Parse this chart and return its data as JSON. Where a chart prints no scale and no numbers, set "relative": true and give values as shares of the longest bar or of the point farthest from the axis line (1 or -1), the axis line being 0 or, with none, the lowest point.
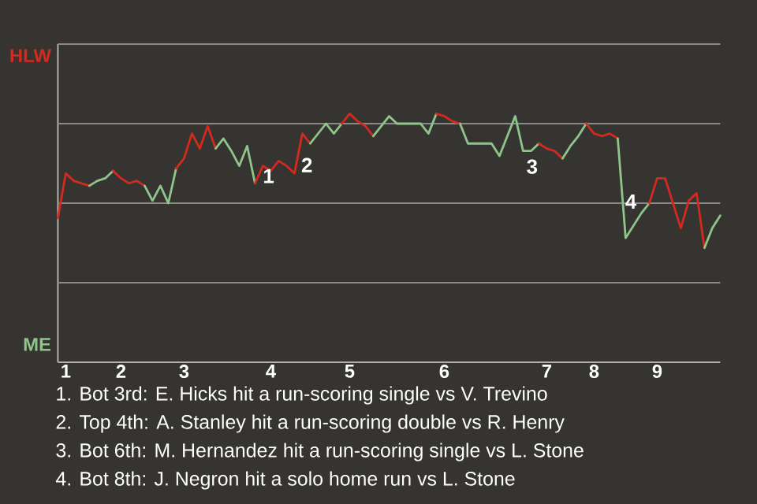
{
  "chart_data": {
    "type": "line",
    "relative": true,
    "categories": [
      null,
      "1",
      null,
      null,
      null,
      null,
      null,
      null,
      "2",
      null,
      null,
      null,
      null,
      null,
      null,
      null,
      "3",
      null,
      null,
      null,
      null,
      null,
      null,
      null,
      null,
      null,
      null,
      "4",
      null,
      null,
      null,
      null,
      null,
      null,
      null,
      null,
      null,
      "5",
      null,
      null,
      null,
      null,
      null,
      null,
      null,
      null,
      null,
      null,
      null,
      "6",
      null,
      null,
      null,
      null,
      null,
      null,
      null,
      null,
      null,
      null,
      null,
      null,
      "7",
      null,
      null,
      null,
      null,
      null,
      "8",
      null,
      null,
      null,
      null,
      null,
      null,
      null,
      "9",
      null,
      null,
      null,
      null,
      null,
      null,
      null,
      null
    ],
    "ref_lines": [
      {
        "axis": "y",
        "value": 0.32,
        "color": "#8a8a8a"
      },
      {
        "axis": "y",
        "value": 0.64,
        "color": "#8a8a8a"
      },
      {
        "axis": "y",
        "value": 0.96,
        "color": "#8a8a8a"
      },
      {
        "axis": "y",
        "value": 1.28,
        "color": "#8a8a8a"
      }
    ],
    "series": [
      {
        "color": "#d42a1e",
        "values": [
          0.58,
          0.76,
          0.73,
          0.72,
          0.71,
          null,
          null,
          null,
          null,
          null,
          null,
          null,
          null,
          null,
          null,
          null,
          null,
          null,
          null,
          null,
          null,
          null,
          null,
          null,
          null,
          null,
          null,
          null,
          null,
          null,
          null,
          null,
          null,
          null,
          null,
          null,
          null,
          null,
          null,
          null,
          null,
          null,
          null,
          null,
          null,
          null,
          null,
          null,
          null,
          null,
          null,
          null,
          null,
          null,
          null,
          null,
          null,
          null,
          null,
          null,
          null,
          null,
          null,
          null,
          null,
          null,
          null,
          null,
          null,
          null,
          null,
          null,
          null,
          null,
          null,
          null,
          null,
          null,
          null,
          null,
          null,
          null,
          null,
          null,
          null
        ]
      },
      {
        "color": "#8fc58a",
        "values": [
          null,
          null,
          null,
          null,
          0.71,
          0.73,
          0.74,
          0.77,
          null,
          null,
          null,
          null,
          null,
          null,
          null,
          null,
          null,
          null,
          null,
          null,
          null,
          null,
          null,
          null,
          null,
          null,
          null,
          null,
          null,
          null,
          null,
          null,
          null,
          null,
          null,
          null,
          null,
          null,
          null,
          null,
          null,
          null,
          null,
          null,
          null,
          null,
          null,
          null,
          null,
          null,
          null,
          null,
          null,
          null,
          null,
          null,
          null,
          null,
          null,
          null,
          null,
          null,
          null,
          null,
          null,
          null,
          null,
          null,
          null,
          null,
          null,
          null,
          null,
          null,
          null,
          null,
          null,
          null,
          null,
          null,
          null,
          null,
          null,
          null,
          null
        ]
      },
      {
        "color": "#d42a1e",
        "values": [
          null,
          null,
          null,
          null,
          null,
          null,
          null,
          0.77,
          0.74,
          0.72,
          0.73,
          0.71,
          null,
          null,
          null,
          null,
          null,
          null,
          null,
          null,
          null,
          null,
          null,
          null,
          null,
          null,
          null,
          null,
          null,
          null,
          null,
          null,
          null,
          null,
          null,
          null,
          null,
          null,
          null,
          null,
          null,
          null,
          null,
          null,
          null,
          null,
          null,
          null,
          null,
          null,
          null,
          null,
          null,
          null,
          null,
          null,
          null,
          null,
          null,
          null,
          null,
          null,
          null,
          null,
          null,
          null,
          null,
          null,
          null,
          null,
          null,
          null,
          null,
          null,
          null,
          null,
          null,
          null,
          null,
          null,
          null,
          null,
          null,
          null,
          null
        ]
      },
      {
        "color": "#8fc58a",
        "values": [
          null,
          null,
          null,
          null,
          null,
          null,
          null,
          null,
          null,
          null,
          null,
          0.71,
          0.65,
          0.71,
          0.64,
          0.78,
          null,
          null,
          null,
          null,
          null,
          null,
          null,
          null,
          null,
          null,
          null,
          null,
          null,
          null,
          null,
          null,
          null,
          null,
          null,
          null,
          null,
          null,
          null,
          null,
          null,
          null,
          null,
          null,
          null,
          null,
          null,
          null,
          null,
          null,
          null,
          null,
          null,
          null,
          null,
          null,
          null,
          null,
          null,
          null,
          null,
          null,
          null,
          null,
          null,
          null,
          null,
          null,
          null,
          null,
          null,
          null,
          null,
          null,
          null,
          null,
          null,
          null,
          null,
          null,
          null,
          null,
          null,
          null,
          null
        ]
      },
      {
        "color": "#d42a1e",
        "values": [
          null,
          null,
          null,
          null,
          null,
          null,
          null,
          null,
          null,
          null,
          null,
          null,
          null,
          null,
          null,
          0.78,
          0.82,
          0.92,
          0.86,
          0.95,
          0.86,
          null,
          null,
          null,
          null,
          null,
          null,
          null,
          null,
          null,
          null,
          null,
          null,
          null,
          null,
          null,
          null,
          null,
          null,
          null,
          null,
          null,
          null,
          null,
          null,
          null,
          null,
          null,
          null,
          null,
          null,
          null,
          null,
          null,
          null,
          null,
          null,
          null,
          null,
          null,
          null,
          null,
          null,
          null,
          null,
          null,
          null,
          null,
          null,
          null,
          null,
          null,
          null,
          null,
          null,
          null,
          null,
          null,
          null,
          null,
          null,
          null,
          null,
          null,
          null
        ]
      },
      {
        "color": "#8fc58a",
        "values": [
          null,
          null,
          null,
          null,
          null,
          null,
          null,
          null,
          null,
          null,
          null,
          null,
          null,
          null,
          null,
          null,
          null,
          null,
          null,
          null,
          0.86,
          0.9,
          0.85,
          0.79,
          0.87,
          0.72,
          null,
          null,
          null,
          null,
          null,
          null,
          null,
          null,
          null,
          null,
          null,
          null,
          null,
          null,
          null,
          null,
          null,
          null,
          null,
          null,
          null,
          null,
          null,
          null,
          null,
          null,
          null,
          null,
          null,
          null,
          null,
          null,
          null,
          null,
          null,
          null,
          null,
          null,
          null,
          null,
          null,
          null,
          null,
          null,
          null,
          null,
          null,
          null,
          null,
          null,
          null,
          null,
          null,
          null,
          null,
          null,
          null,
          null,
          null
        ]
      },
      {
        "color": "#d42a1e",
        "values": [
          null,
          null,
          null,
          null,
          null,
          null,
          null,
          null,
          null,
          null,
          null,
          null,
          null,
          null,
          null,
          null,
          null,
          null,
          null,
          null,
          null,
          null,
          null,
          null,
          null,
          0.72,
          0.79,
          0.77,
          0.81,
          0.79,
          0.76,
          0.92,
          0.88,
          null,
          null,
          null,
          null,
          null,
          null,
          null,
          null,
          null,
          null,
          null,
          null,
          null,
          null,
          null,
          null,
          null,
          null,
          null,
          null,
          null,
          null,
          null,
          null,
          null,
          null,
          null,
          null,
          null,
          null,
          null,
          null,
          null,
          null,
          null,
          null,
          null,
          null,
          null,
          null,
          null,
          null,
          null,
          null,
          null,
          null,
          null,
          null,
          null,
          null,
          null,
          null
        ]
      },
      {
        "color": "#8fc58a",
        "values": [
          null,
          null,
          null,
          null,
          null,
          null,
          null,
          null,
          null,
          null,
          null,
          null,
          null,
          null,
          null,
          null,
          null,
          null,
          null,
          null,
          null,
          null,
          null,
          null,
          null,
          null,
          null,
          null,
          null,
          null,
          null,
          null,
          0.88,
          0.92,
          0.96,
          0.92,
          0.96,
          null,
          null,
          null,
          null,
          null,
          null,
          null,
          null,
          null,
          null,
          null,
          null,
          null,
          null,
          null,
          null,
          null,
          null,
          null,
          null,
          null,
          null,
          null,
          null,
          null,
          null,
          null,
          null,
          null,
          null,
          null,
          null,
          null,
          null,
          null,
          null,
          null,
          null,
          null,
          null,
          null,
          null,
          null,
          null,
          null,
          null,
          null,
          null
        ]
      },
      {
        "color": "#d42a1e",
        "values": [
          null,
          null,
          null,
          null,
          null,
          null,
          null,
          null,
          null,
          null,
          null,
          null,
          null,
          null,
          null,
          null,
          null,
          null,
          null,
          null,
          null,
          null,
          null,
          null,
          null,
          null,
          null,
          null,
          null,
          null,
          null,
          null,
          null,
          null,
          null,
          null,
          0.96,
          1,
          0.97,
          0.95,
          0.91,
          null,
          null,
          null,
          null,
          null,
          null,
          null,
          null,
          null,
          null,
          null,
          null,
          null,
          null,
          null,
          null,
          null,
          null,
          null,
          null,
          null,
          null,
          null,
          null,
          null,
          null,
          null,
          null,
          null,
          null,
          null,
          null,
          null,
          null,
          null,
          null,
          null,
          null,
          null,
          null,
          null,
          null,
          null,
          null
        ]
      },
      {
        "color": "#8fc58a",
        "values": [
          null,
          null,
          null,
          null,
          null,
          null,
          null,
          null,
          null,
          null,
          null,
          null,
          null,
          null,
          null,
          null,
          null,
          null,
          null,
          null,
          null,
          null,
          null,
          null,
          null,
          null,
          null,
          null,
          null,
          null,
          null,
          null,
          null,
          null,
          null,
          null,
          null,
          null,
          null,
          null,
          0.91,
          0.95,
          0.99,
          0.96,
          0.96,
          0.96,
          0.96,
          0.92,
          1,
          null,
          null,
          null,
          null,
          null,
          null,
          null,
          null,
          null,
          null,
          null,
          null,
          null,
          null,
          null,
          null,
          null,
          null,
          null,
          null,
          null,
          null,
          null,
          null,
          null,
          null,
          null,
          null,
          null,
          null,
          null,
          null,
          null,
          null,
          null,
          null
        ]
      },
      {
        "color": "#d42a1e",
        "values": [
          null,
          null,
          null,
          null,
          null,
          null,
          null,
          null,
          null,
          null,
          null,
          null,
          null,
          null,
          null,
          null,
          null,
          null,
          null,
          null,
          null,
          null,
          null,
          null,
          null,
          null,
          null,
          null,
          null,
          null,
          null,
          null,
          null,
          null,
          null,
          null,
          null,
          null,
          null,
          null,
          null,
          null,
          null,
          null,
          null,
          null,
          null,
          null,
          1,
          0.99,
          0.97,
          0.96,
          null,
          null,
          null,
          null,
          null,
          null,
          null,
          null,
          null,
          null,
          null,
          null,
          null,
          null,
          null,
          null,
          null,
          null,
          null,
          null,
          null,
          null,
          null,
          null,
          null,
          null,
          null,
          null,
          null,
          null,
          null,
          null,
          null
        ]
      },
      {
        "color": "#8fc58a",
        "values": [
          null,
          null,
          null,
          null,
          null,
          null,
          null,
          null,
          null,
          null,
          null,
          null,
          null,
          null,
          null,
          null,
          null,
          null,
          null,
          null,
          null,
          null,
          null,
          null,
          null,
          null,
          null,
          null,
          null,
          null,
          null,
          null,
          null,
          null,
          null,
          null,
          null,
          null,
          null,
          null,
          null,
          null,
          null,
          null,
          null,
          null,
          null,
          null,
          null,
          null,
          null,
          0.96,
          0.88,
          0.88,
          0.88,
          0.88,
          0.83,
          0.91,
          0.99,
          0.85,
          0.85,
          0.88,
          null,
          null,
          null,
          null,
          null,
          null,
          null,
          null,
          null,
          null,
          null,
          null,
          null,
          null,
          null,
          null,
          null,
          null,
          null,
          null,
          null,
          null,
          null
        ]
      },
      {
        "color": "#d42a1e",
        "values": [
          null,
          null,
          null,
          null,
          null,
          null,
          null,
          null,
          null,
          null,
          null,
          null,
          null,
          null,
          null,
          null,
          null,
          null,
          null,
          null,
          null,
          null,
          null,
          null,
          null,
          null,
          null,
          null,
          null,
          null,
          null,
          null,
          null,
          null,
          null,
          null,
          null,
          null,
          null,
          null,
          null,
          null,
          null,
          null,
          null,
          null,
          null,
          null,
          null,
          null,
          null,
          null,
          null,
          null,
          null,
          null,
          null,
          null,
          null,
          null,
          null,
          0.88,
          0.86,
          0.85,
          0.82,
          null,
          null,
          null,
          null,
          null,
          null,
          null,
          null,
          null,
          null,
          null,
          null,
          null,
          null,
          null,
          null,
          null,
          null,
          null,
          null
        ]
      },
      {
        "color": "#8fc58a",
        "values": [
          null,
          null,
          null,
          null,
          null,
          null,
          null,
          null,
          null,
          null,
          null,
          null,
          null,
          null,
          null,
          null,
          null,
          null,
          null,
          null,
          null,
          null,
          null,
          null,
          null,
          null,
          null,
          null,
          null,
          null,
          null,
          null,
          null,
          null,
          null,
          null,
          null,
          null,
          null,
          null,
          null,
          null,
          null,
          null,
          null,
          null,
          null,
          null,
          null,
          null,
          null,
          null,
          null,
          null,
          null,
          null,
          null,
          null,
          null,
          null,
          null,
          null,
          null,
          null,
          0.82,
          0.87,
          0.91,
          0.96,
          null,
          null,
          null,
          null,
          null,
          null,
          null,
          null,
          null,
          null,
          null,
          null,
          null,
          null,
          null,
          null,
          null
        ]
      },
      {
        "color": "#d42a1e",
        "values": [
          null,
          null,
          null,
          null,
          null,
          null,
          null,
          null,
          null,
          null,
          null,
          null,
          null,
          null,
          null,
          null,
          null,
          null,
          null,
          null,
          null,
          null,
          null,
          null,
          null,
          null,
          null,
          null,
          null,
          null,
          null,
          null,
          null,
          null,
          null,
          null,
          null,
          null,
          null,
          null,
          null,
          null,
          null,
          null,
          null,
          null,
          null,
          null,
          null,
          null,
          null,
          null,
          null,
          null,
          null,
          null,
          null,
          null,
          null,
          null,
          null,
          null,
          null,
          null,
          null,
          null,
          null,
          0.96,
          0.92,
          0.91,
          0.92,
          0.9,
          null,
          null,
          null,
          null,
          null,
          null,
          null,
          null,
          null,
          null,
          null,
          null,
          null
        ]
      },
      {
        "color": "#8fc58a",
        "values": [
          null,
          null,
          null,
          null,
          null,
          null,
          null,
          null,
          null,
          null,
          null,
          null,
          null,
          null,
          null,
          null,
          null,
          null,
          null,
          null,
          null,
          null,
          null,
          null,
          null,
          null,
          null,
          null,
          null,
          null,
          null,
          null,
          null,
          null,
          null,
          null,
          null,
          null,
          null,
          null,
          null,
          null,
          null,
          null,
          null,
          null,
          null,
          null,
          null,
          null,
          null,
          null,
          null,
          null,
          null,
          null,
          null,
          null,
          null,
          null,
          null,
          null,
          null,
          null,
          null,
          null,
          null,
          null,
          null,
          null,
          null,
          0.9,
          0.5,
          0.55,
          0.6,
          0.64,
          null,
          null,
          null,
          null,
          null,
          null,
          null,
          null,
          null
        ]
      },
      {
        "color": "#d42a1e",
        "values": [
          null,
          null,
          null,
          null,
          null,
          null,
          null,
          null,
          null,
          null,
          null,
          null,
          null,
          null,
          null,
          null,
          null,
          null,
          null,
          null,
          null,
          null,
          null,
          null,
          null,
          null,
          null,
          null,
          null,
          null,
          null,
          null,
          null,
          null,
          null,
          null,
          null,
          null,
          null,
          null,
          null,
          null,
          null,
          null,
          null,
          null,
          null,
          null,
          null,
          null,
          null,
          null,
          null,
          null,
          null,
          null,
          null,
          null,
          null,
          null,
          null,
          null,
          null,
          null,
          null,
          null,
          null,
          null,
          null,
          null,
          null,
          null,
          null,
          null,
          null,
          0.64,
          0.74,
          0.74,
          0.64,
          0.54,
          0.65,
          0.68,
          0.46,
          null,
          null
        ]
      },
      {
        "color": "#8fc58a",
        "values": [
          null,
          null,
          null,
          null,
          null,
          null,
          null,
          null,
          null,
          null,
          null,
          null,
          null,
          null,
          null,
          null,
          null,
          null,
          null,
          null,
          null,
          null,
          null,
          null,
          null,
          null,
          null,
          null,
          null,
          null,
          null,
          null,
          null,
          null,
          null,
          null,
          null,
          null,
          null,
          null,
          null,
          null,
          null,
          null,
          null,
          null,
          null,
          null,
          null,
          null,
          null,
          null,
          null,
          null,
          null,
          null,
          null,
          null,
          null,
          null,
          null,
          null,
          null,
          null,
          null,
          null,
          null,
          null,
          null,
          null,
          null,
          null,
          null,
          null,
          null,
          null,
          null,
          null,
          null,
          null,
          null,
          null,
          0.46,
          0.54,
          0.59
        ]
      }
    ],
    "annotations": [
      "HLW",
      "ME",
      "1",
      "2",
      "3",
      "4",
      "1. Bot 3rd: E. Hicks hit a run-scoring single vs V. Trevino",
      "2. Top 4th: A. Stanley hit a run-scoring double vs R. Henry",
      "3. Bot 6th: M. Hernandez hit a run-scoring single vs L. Stone",
      "4. Bot 8th: J. Negron hit a solo home run vs L. Stone"
    ]
  }
}
